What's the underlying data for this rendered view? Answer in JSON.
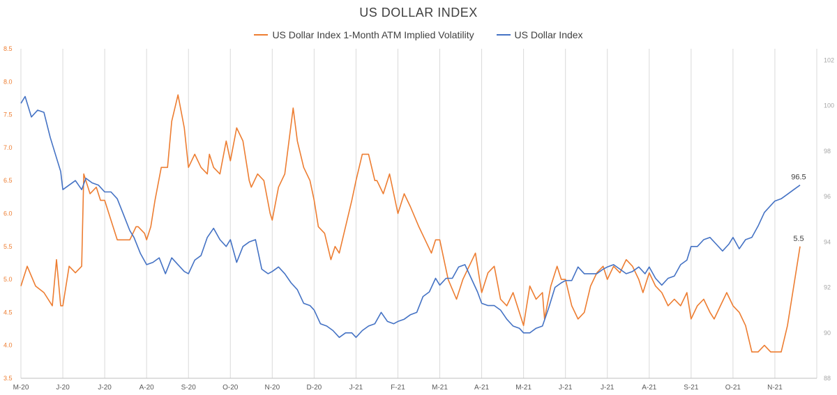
{
  "chart_data": {
    "type": "line",
    "title": "US DOLLAR INDEX",
    "x_ticks": [
      "M-20",
      "J-20",
      "J-20",
      "A-20",
      "S-20",
      "O-20",
      "N-20",
      "D-20",
      "J-21",
      "F-21",
      "M-21",
      "A-21",
      "M-21",
      "J-21",
      "J-21",
      "A-21",
      "S-21",
      "O-21",
      "N-21"
    ],
    "y_left": {
      "ticks": [
        "3.5",
        "4.0",
        "4.5",
        "5.0",
        "5.5",
        "6.0",
        "6.5",
        "7.0",
        "7.5",
        "8.0",
        "8.5"
      ],
      "lim": [
        3.5,
        8.5
      ]
    },
    "y_right": {
      "ticks": [
        "88",
        "90",
        "92",
        "94",
        "96",
        "98",
        "100",
        "102"
      ],
      "lim": [
        88,
        102.5
      ]
    },
    "grid": "vertical",
    "legend_position": "top",
    "series": [
      {
        "name": "US Dollar Index 1-Month ATM Implied Volatility",
        "color": "#ED7D31",
        "axis": "left",
        "last_label": "5.5",
        "x": [
          0,
          0.15,
          0.35,
          0.55,
          0.75,
          0.85,
          0.95,
          1.0,
          1.15,
          1.3,
          1.45,
          1.5,
          1.65,
          1.8,
          1.9,
          2.0,
          2.15,
          2.3,
          2.45,
          2.6,
          2.75,
          2.8,
          2.95,
          3.0,
          3.1,
          3.2,
          3.35,
          3.5,
          3.6,
          3.75,
          3.9,
          4.0,
          4.15,
          4.3,
          4.45,
          4.5,
          4.6,
          4.75,
          4.9,
          5.0,
          5.15,
          5.3,
          5.45,
          5.5,
          5.65,
          5.8,
          5.95,
          6.0,
          6.15,
          6.3,
          6.5,
          6.6,
          6.75,
          6.9,
          7.0,
          7.1,
          7.25,
          7.4,
          7.5,
          7.6,
          7.75,
          7.9,
          8.0,
          8.15,
          8.3,
          8.45,
          8.5,
          8.65,
          8.8,
          9.0,
          9.15,
          9.3,
          9.5,
          9.65,
          9.8,
          9.9,
          10.0,
          10.2,
          10.4,
          10.55,
          10.7,
          10.85,
          11.0,
          11.15,
          11.3,
          11.45,
          11.6,
          11.75,
          11.9,
          12.0,
          12.15,
          12.3,
          12.45,
          12.5,
          12.65,
          12.8,
          12.9,
          13.0,
          13.15,
          13.3,
          13.45,
          13.6,
          13.75,
          13.9,
          14.0,
          14.15,
          14.3,
          14.45,
          14.6,
          14.75,
          14.85,
          15.0,
          15.15,
          15.3,
          15.45,
          15.6,
          15.75,
          15.9,
          16.0,
          16.15,
          16.3,
          16.45,
          16.55,
          16.7,
          16.85,
          17.0,
          17.15,
          17.3,
          17.45,
          17.6,
          17.75,
          17.9,
          18.0,
          18.15,
          18.3,
          18.45,
          18.6
        ],
        "values": [
          4.9,
          5.2,
          4.9,
          4.8,
          4.6,
          5.3,
          4.6,
          4.6,
          5.2,
          5.1,
          5.2,
          6.6,
          6.3,
          6.4,
          6.2,
          6.2,
          5.9,
          5.6,
          5.6,
          5.6,
          5.8,
          5.8,
          5.7,
          5.6,
          5.8,
          6.2,
          6.7,
          6.7,
          7.4,
          7.8,
          7.3,
          6.7,
          6.9,
          6.7,
          6.6,
          6.9,
          6.7,
          6.6,
          7.1,
          6.8,
          7.3,
          7.1,
          6.5,
          6.4,
          6.6,
          6.5,
          6.0,
          5.9,
          6.4,
          6.6,
          7.6,
          7.1,
          6.7,
          6.5,
          6.2,
          5.8,
          5.7,
          5.3,
          5.5,
          5.4,
          5.8,
          6.2,
          6.5,
          6.9,
          6.9,
          6.5,
          6.5,
          6.3,
          6.6,
          6.0,
          6.3,
          6.1,
          5.8,
          5.6,
          5.4,
          5.6,
          5.6,
          5.0,
          4.7,
          5.0,
          5.2,
          5.4,
          4.8,
          5.1,
          5.2,
          4.7,
          4.6,
          4.8,
          4.5,
          4.3,
          4.9,
          4.7,
          4.8,
          4.4,
          4.9,
          5.2,
          5.0,
          5.0,
          4.6,
          4.4,
          4.5,
          4.9,
          5.1,
          5.2,
          5.0,
          5.2,
          5.1,
          5.3,
          5.2,
          5.0,
          4.8,
          5.1,
          4.9,
          4.8,
          4.6,
          4.7,
          4.6,
          4.8,
          4.4,
          4.6,
          4.7,
          4.5,
          4.4,
          4.6,
          4.8,
          4.6,
          4.5,
          4.3,
          3.9,
          3.9,
          4.0,
          3.9,
          3.9,
          3.9,
          4.3,
          4.9,
          5.5
        ]
      },
      {
        "name": "US Dollar Index",
        "color": "#4472C4",
        "axis": "right",
        "last_label": "96.5",
        "x": [
          0,
          0.1,
          0.25,
          0.4,
          0.55,
          0.7,
          0.8,
          0.95,
          1.0,
          1.15,
          1.3,
          1.45,
          1.55,
          1.7,
          1.85,
          2.0,
          2.15,
          2.3,
          2.45,
          2.6,
          2.7,
          2.85,
          3.0,
          3.15,
          3.3,
          3.45,
          3.6,
          3.75,
          3.9,
          4.0,
          4.15,
          4.3,
          4.45,
          4.6,
          4.75,
          4.9,
          5.0,
          5.15,
          5.3,
          5.45,
          5.6,
          5.75,
          5.9,
          6.0,
          6.15,
          6.3,
          6.45,
          6.6,
          6.75,
          6.9,
          7.0,
          7.15,
          7.3,
          7.45,
          7.6,
          7.75,
          7.9,
          8.0,
          8.15,
          8.3,
          8.45,
          8.6,
          8.75,
          8.9,
          9.0,
          9.15,
          9.3,
          9.45,
          9.6,
          9.75,
          9.9,
          10.0,
          10.15,
          10.3,
          10.45,
          10.6,
          10.75,
          10.9,
          11.0,
          11.15,
          11.3,
          11.45,
          11.6,
          11.75,
          11.9,
          12.0,
          12.15,
          12.3,
          12.45,
          12.6,
          12.75,
          12.9,
          13.0,
          13.15,
          13.3,
          13.45,
          13.6,
          13.75,
          13.9,
          14.0,
          14.15,
          14.3,
          14.45,
          14.6,
          14.75,
          14.9,
          15.0,
          15.15,
          15.3,
          15.45,
          15.6,
          15.75,
          15.9,
          16.0,
          16.15,
          16.3,
          16.45,
          16.6,
          16.75,
          16.9,
          17.0,
          17.15,
          17.3,
          17.45,
          17.6,
          17.75,
          17.9,
          18.0,
          18.15,
          18.3,
          18.45,
          18.6
        ],
        "values": [
          100.1,
          100.4,
          99.5,
          99.8,
          99.7,
          98.6,
          98.0,
          97.1,
          96.3,
          96.5,
          96.7,
          96.3,
          96.8,
          96.6,
          96.5,
          96.2,
          96.2,
          95.9,
          95.2,
          94.5,
          94.2,
          93.5,
          93.0,
          93.1,
          93.3,
          92.6,
          93.3,
          93.0,
          92.7,
          92.6,
          93.2,
          93.4,
          94.2,
          94.6,
          94.1,
          93.8,
          94.1,
          93.1,
          93.8,
          94.0,
          94.1,
          92.8,
          92.6,
          92.7,
          92.9,
          92.6,
          92.2,
          91.9,
          91.3,
          91.2,
          91.0,
          90.4,
          90.3,
          90.1,
          89.8,
          90.0,
          90.0,
          89.8,
          90.1,
          90.3,
          90.4,
          90.9,
          90.5,
          90.4,
          90.5,
          90.6,
          90.8,
          90.9,
          91.6,
          91.8,
          92.4,
          92.1,
          92.4,
          92.4,
          92.9,
          93.0,
          92.4,
          91.8,
          91.3,
          91.2,
          91.2,
          91.0,
          90.6,
          90.3,
          90.2,
          90.0,
          90.0,
          90.2,
          90.3,
          91.1,
          92.0,
          92.2,
          92.3,
          92.3,
          92.9,
          92.6,
          92.6,
          92.6,
          92.8,
          92.9,
          93.0,
          92.8,
          92.6,
          92.7,
          92.9,
          92.6,
          92.9,
          92.4,
          92.1,
          92.4,
          92.5,
          93.0,
          93.2,
          93.8,
          93.8,
          94.1,
          94.2,
          93.9,
          93.6,
          93.9,
          94.2,
          93.7,
          94.1,
          94.2,
          94.7,
          95.3,
          95.6,
          95.8,
          95.9,
          96.1,
          96.3,
          96.5
        ]
      }
    ]
  }
}
